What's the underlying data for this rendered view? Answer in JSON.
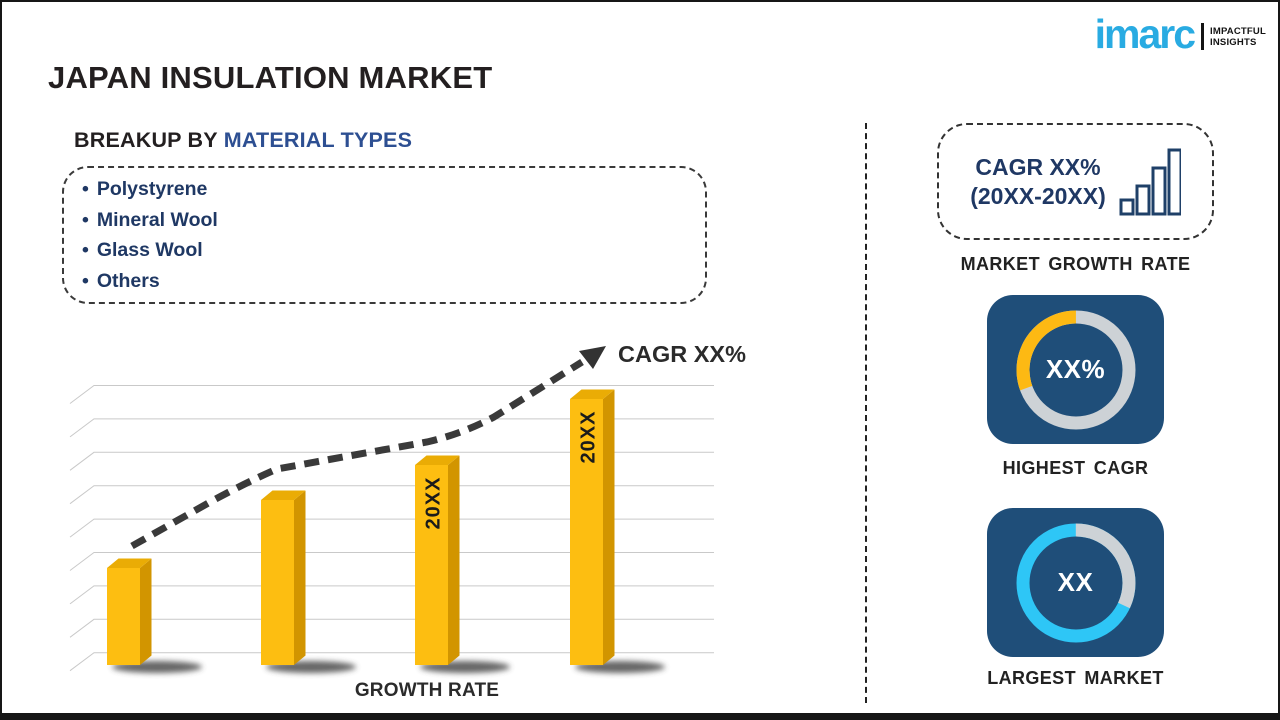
{
  "header": {
    "title": "JAPAN INSULATION MARKET"
  },
  "logo": {
    "brand": "imarc",
    "tagline_line1": "IMPACTFUL",
    "tagline_line2": "INSIGHTS",
    "brand_color": "#29ABE2"
  },
  "breakup": {
    "heading_prefix": "BREAKUP BY",
    "heading_highlight": "MATERIAL TYPES",
    "heading_prefix_color": "#231F20",
    "heading_highlight_color": "#2D4F92",
    "items": [
      "Polystyrene",
      "Mineral Wool",
      "Glass Wool",
      "Others"
    ],
    "item_color": "#1F3864"
  },
  "chart_data": {
    "type": "bar",
    "title": "",
    "xlabel": "GROWTH RATE",
    "categories": [
      "",
      "",
      "20XX",
      "20XX"
    ],
    "values": [
      97,
      165,
      200,
      266
    ],
    "units": "relative bar heights in px (placeholder template chart, numeric axis values not shown)",
    "trend_label": "CAGR XX%",
    "trend_style": "dashed ascending arrow",
    "grid": true,
    "gridline_count": 9,
    "bar_color_front": "#FDBE11",
    "bar_color_top": "#EAAC05",
    "bar_color_side": "#D29500",
    "bar_label_color": "#1B1B1B",
    "legend": "none"
  },
  "sidebar": {
    "growth_box": {
      "line1": "CAGR XX%",
      "line2": "(20XX-20XX)",
      "text_color": "#1F3864",
      "caption": "MARKET GROWTH RATE"
    },
    "highest_cagr": {
      "value": "XX%",
      "caption": "HIGHEST CAGR",
      "tile_color": "#1F4E79",
      "ring_base_color": "#CDD2D6",
      "segment_color": "#FDB913",
      "segment_pct": 30.5,
      "segment_direction": "ccw"
    },
    "largest_market": {
      "value": "XX",
      "caption": "LARGEST MARKET",
      "tile_color": "#1F4E79",
      "ring_color": "#2EC6F6",
      "gap_color": "#CDD2D6",
      "gap_pct": 32,
      "gap_direction": "cw"
    }
  }
}
